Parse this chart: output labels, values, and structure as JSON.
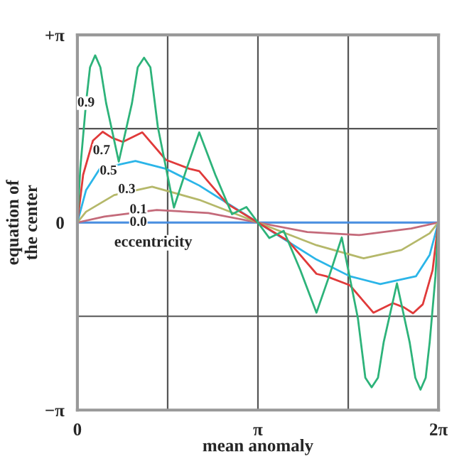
{
  "chart_data": {
    "type": "line",
    "xlabel": "mean anomaly",
    "ylabel": "equation of\nthe center",
    "xlim": [
      0,
      6.2832
    ],
    "ylim": [
      -3.1416,
      3.1416
    ],
    "xticks": [
      {
        "value": 0,
        "label": "0"
      },
      {
        "value": 1.5708,
        "label": null
      },
      {
        "value": 3.1416,
        "label": "π"
      },
      {
        "value": 4.7124,
        "label": null
      },
      {
        "value": 6.2832,
        "label": "2π"
      }
    ],
    "yticks": [
      {
        "value": -3.1416,
        "label": "−π"
      },
      {
        "value": -1.5708,
        "label": null
      },
      {
        "value": 0,
        "label": "0"
      },
      {
        "value": 1.5708,
        "label": null
      },
      {
        "value": 3.1416,
        "label": "+π"
      }
    ],
    "grid": true,
    "legend": false,
    "marker": "none",
    "line_style": "solid",
    "series": [
      {
        "color": "#4a90e2",
        "x": [
          0,
          6.28
        ],
        "values": [
          0,
          0
        ]
      },
      {
        "color": "#c46a7a",
        "x": [
          0,
          0.47,
          1.38,
          2.28,
          3.14,
          4.0,
          4.9,
          5.81,
          6.28
        ],
        "values": [
          0,
          0.1,
          0.21,
          0.16,
          0,
          -0.16,
          -0.21,
          -0.1,
          0
        ]
      },
      {
        "color": "#b5b86a",
        "x": [
          0,
          0.15,
          0.64,
          1.3,
          2.12,
          3.14,
          4.16,
          4.98,
          5.64,
          6.13,
          6.28
        ],
        "values": [
          0,
          0.18,
          0.46,
          0.6,
          0.38,
          0,
          -0.38,
          -0.6,
          -0.46,
          -0.18,
          0
        ]
      },
      {
        "color": "#2bb5e8",
        "x": [
          0,
          0.15,
          0.39,
          1.01,
          1.54,
          2.12,
          2.78,
          3.14,
          3.5,
          4.16,
          4.74,
          5.27,
          5.89,
          6.13,
          6.28
        ],
        "values": [
          0,
          0.54,
          0.9,
          1.03,
          0.9,
          0.62,
          0.22,
          0,
          -0.22,
          -0.62,
          -0.9,
          -1.03,
          -0.9,
          -0.54,
          0
        ]
      },
      {
        "color": "#e03a3a",
        "x": [
          0,
          0.1,
          0.27,
          0.44,
          0.6,
          0.79,
          1.13,
          1.54,
          1.95,
          2.12,
          2.61,
          3.14,
          3.67,
          4.16,
          4.33,
          4.74,
          5.15,
          5.49,
          5.68,
          5.84,
          6.01,
          6.18,
          6.28
        ],
        "values": [
          0,
          0.8,
          1.37,
          1.52,
          1.42,
          1.35,
          1.51,
          1.05,
          0.9,
          0.86,
          0.31,
          0,
          -0.31,
          -0.86,
          -0.9,
          -1.05,
          -1.51,
          -1.35,
          -1.42,
          -1.52,
          -1.37,
          -0.8,
          0
        ]
      },
      {
        "color": "#2db37a",
        "x": [
          0,
          0.05,
          0.15,
          0.22,
          0.31,
          0.4,
          0.5,
          0.72,
          0.95,
          1.05,
          1.16,
          1.27,
          1.4,
          1.68,
          1.9,
          2.12,
          2.4,
          2.69,
          2.94,
          3.14,
          3.34,
          3.59,
          3.88,
          4.16,
          4.38,
          4.6,
          4.88,
          5.01,
          5.12,
          5.23,
          5.33,
          5.56,
          5.78,
          5.88,
          5.97,
          6.06,
          6.13,
          6.23,
          6.28
        ],
        "values": [
          0,
          0.9,
          2.0,
          2.6,
          2.8,
          2.6,
          2.0,
          1.02,
          2.0,
          2.6,
          2.76,
          2.6,
          1.6,
          0.25,
          0.9,
          1.51,
          0.8,
          0.14,
          0.26,
          0,
          -0.26,
          -0.14,
          -0.8,
          -1.51,
          -0.9,
          -0.25,
          -1.6,
          -2.6,
          -2.76,
          -2.6,
          -2.0,
          -1.02,
          -2.0,
          -2.6,
          -2.8,
          -2.6,
          -2.0,
          -0.9,
          0
        ]
      }
    ],
    "annotations": [
      {
        "text": "0.9",
        "x": 0.15,
        "y": 2.0
      },
      {
        "text": "0.7",
        "x": 0.42,
        "y": 1.2
      },
      {
        "text": "0.5",
        "x": 0.54,
        "y": 0.86
      },
      {
        "text": "0.3",
        "x": 0.86,
        "y": 0.55
      },
      {
        "text": "0.1",
        "x": 1.06,
        "y": 0.21
      },
      {
        "text": "0.0",
        "x": 1.06,
        "y": 0
      },
      "eccentricity"
    ]
  }
}
